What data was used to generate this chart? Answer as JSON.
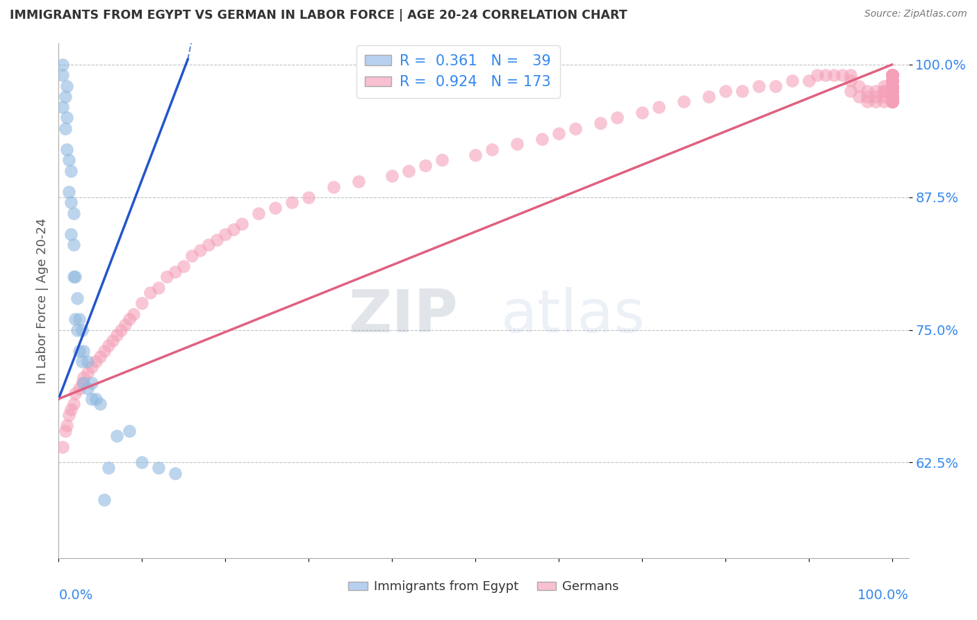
{
  "title": "IMMIGRANTS FROM EGYPT VS GERMAN IN LABOR FORCE | AGE 20-24 CORRELATION CHART",
  "source": "Source: ZipAtlas.com",
  "ylabel": "In Labor Force | Age 20-24",
  "yticks": [
    "62.5%",
    "75.0%",
    "87.5%",
    "100.0%"
  ],
  "ytick_vals": [
    0.625,
    0.75,
    0.875,
    1.0
  ],
  "xlim": [
    0.0,
    1.02
  ],
  "ylim": [
    0.535,
    1.02
  ],
  "egypt_color": "#90b8e0",
  "german_color": "#f4a0b8",
  "egypt_line_color": "#2255cc",
  "german_line_color": "#e06080",
  "egypt_trendline": {
    "x": [
      0.0,
      0.155
    ],
    "y": [
      0.685,
      1.005
    ]
  },
  "german_trendline": {
    "x": [
      0.0,
      1.0
    ],
    "y": [
      0.685,
      1.0
    ]
  },
  "watermark_zip": "ZIP",
  "watermark_atlas": "atlas",
  "egypt_x": [
    0.005,
    0.005,
    0.005,
    0.008,
    0.008,
    0.01,
    0.01,
    0.01,
    0.012,
    0.012,
    0.015,
    0.015,
    0.015,
    0.018,
    0.018,
    0.018,
    0.02,
    0.02,
    0.022,
    0.022,
    0.025,
    0.025,
    0.028,
    0.028,
    0.03,
    0.03,
    0.035,
    0.035,
    0.04,
    0.04,
    0.045,
    0.05,
    0.055,
    0.06,
    0.07,
    0.085,
    0.1,
    0.12,
    0.14
  ],
  "egypt_y": [
    0.96,
    0.99,
    1.0,
    0.94,
    0.97,
    0.92,
    0.95,
    0.98,
    0.88,
    0.91,
    0.84,
    0.87,
    0.9,
    0.8,
    0.83,
    0.86,
    0.76,
    0.8,
    0.75,
    0.78,
    0.73,
    0.76,
    0.72,
    0.75,
    0.7,
    0.73,
    0.695,
    0.72,
    0.685,
    0.7,
    0.685,
    0.68,
    0.59,
    0.62,
    0.65,
    0.655,
    0.625,
    0.62,
    0.615
  ],
  "german_x": [
    0.005,
    0.008,
    0.01,
    0.012,
    0.015,
    0.018,
    0.02,
    0.025,
    0.028,
    0.03,
    0.035,
    0.04,
    0.045,
    0.05,
    0.055,
    0.06,
    0.065,
    0.07,
    0.075,
    0.08,
    0.085,
    0.09,
    0.1,
    0.11,
    0.12,
    0.13,
    0.14,
    0.15,
    0.16,
    0.17,
    0.18,
    0.19,
    0.2,
    0.21,
    0.22,
    0.24,
    0.26,
    0.28,
    0.3,
    0.33,
    0.36,
    0.4,
    0.42,
    0.44,
    0.46,
    0.5,
    0.52,
    0.55,
    0.58,
    0.6,
    0.62,
    0.65,
    0.67,
    0.7,
    0.72,
    0.75,
    0.78,
    0.8,
    0.82,
    0.84,
    0.86,
    0.88,
    0.9,
    0.91,
    0.92,
    0.93,
    0.94,
    0.95,
    0.95,
    0.95,
    0.96,
    0.96,
    0.97,
    0.97,
    0.97,
    0.98,
    0.98,
    0.98,
    0.99,
    0.99,
    0.99,
    0.99,
    0.99,
    1.0,
    1.0,
    1.0,
    1.0,
    1.0,
    1.0,
    1.0,
    1.0,
    1.0,
    1.0,
    1.0,
    1.0,
    1.0,
    1.0,
    1.0,
    1.0,
    1.0,
    1.0,
    1.0,
    1.0,
    1.0,
    1.0,
    1.0,
    1.0,
    1.0,
    1.0,
    1.0,
    1.0,
    1.0,
    1.0,
    1.0,
    1.0,
    1.0,
    1.0,
    1.0,
    1.0,
    1.0,
    1.0,
    1.0,
    1.0,
    1.0,
    1.0,
    1.0,
    1.0,
    1.0,
    1.0,
    1.0,
    1.0,
    1.0,
    1.0,
    1.0,
    1.0,
    1.0,
    1.0,
    1.0,
    1.0,
    1.0,
    1.0,
    1.0,
    1.0,
    1.0,
    1.0,
    1.0,
    1.0,
    1.0,
    1.0,
    1.0,
    1.0,
    1.0,
    1.0,
    1.0,
    1.0,
    1.0,
    1.0,
    1.0,
    1.0,
    1.0,
    1.0,
    1.0,
    1.0,
    1.0
  ],
  "german_y": [
    0.64,
    0.655,
    0.66,
    0.67,
    0.675,
    0.68,
    0.69,
    0.695,
    0.7,
    0.705,
    0.71,
    0.715,
    0.72,
    0.725,
    0.73,
    0.735,
    0.74,
    0.745,
    0.75,
    0.755,
    0.76,
    0.765,
    0.775,
    0.785,
    0.79,
    0.8,
    0.805,
    0.81,
    0.82,
    0.825,
    0.83,
    0.835,
    0.84,
    0.845,
    0.85,
    0.86,
    0.865,
    0.87,
    0.875,
    0.885,
    0.89,
    0.895,
    0.9,
    0.905,
    0.91,
    0.915,
    0.92,
    0.925,
    0.93,
    0.935,
    0.94,
    0.945,
    0.95,
    0.955,
    0.96,
    0.965,
    0.97,
    0.975,
    0.975,
    0.98,
    0.98,
    0.985,
    0.985,
    0.99,
    0.99,
    0.99,
    0.99,
    0.99,
    0.985,
    0.975,
    0.98,
    0.97,
    0.975,
    0.97,
    0.965,
    0.975,
    0.965,
    0.97,
    0.975,
    0.98,
    0.965,
    0.97,
    0.975,
    0.99,
    0.975,
    0.97,
    0.98,
    0.965,
    0.975,
    0.99,
    0.985,
    0.97,
    0.98,
    0.975,
    0.965,
    0.99,
    0.98,
    0.975,
    0.97,
    0.99,
    0.985,
    0.975,
    0.97,
    0.99,
    0.985,
    0.975,
    0.97,
    0.98,
    0.99,
    0.985,
    0.975,
    0.97,
    0.98,
    0.965,
    0.975,
    0.99,
    0.985,
    0.98,
    0.975,
    0.97,
    0.965,
    0.99,
    0.985,
    0.98,
    0.975,
    0.97,
    0.965,
    0.99,
    0.985,
    0.98,
    0.975,
    0.97,
    0.965,
    0.99,
    0.985,
    0.98,
    0.975,
    0.97,
    0.965,
    0.99,
    0.985,
    0.98,
    0.975,
    0.97,
    0.965,
    0.99,
    0.985,
    0.98,
    0.975,
    0.97,
    0.965,
    0.99,
    0.985,
    0.98,
    0.975,
    0.97,
    0.965,
    0.99,
    0.985,
    0.98,
    0.975,
    0.97,
    0.965,
    0.99
  ]
}
